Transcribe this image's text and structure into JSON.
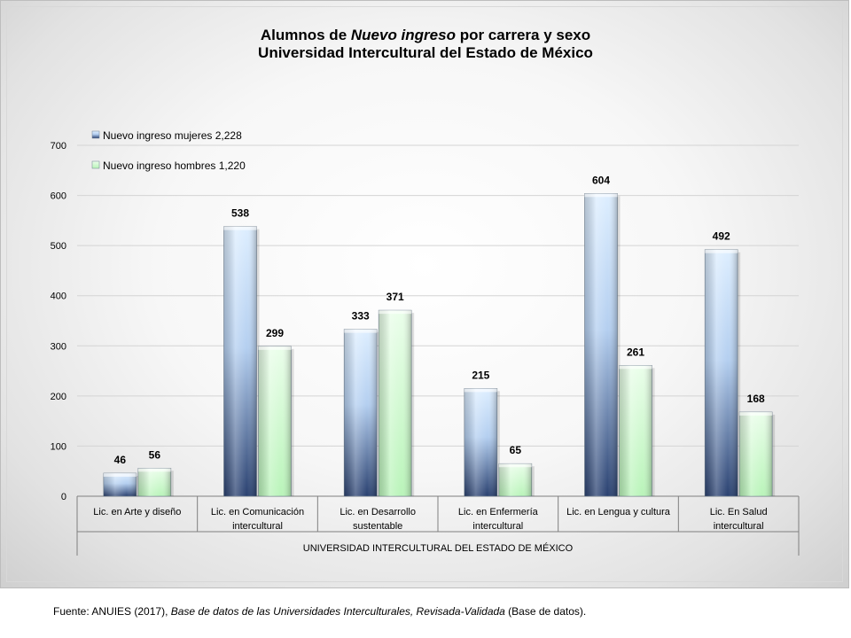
{
  "title": {
    "line1_pre": "Alumnos de ",
    "line1_italic": "Nuevo ingreso",
    "line1_post": " por carrera y sexo",
    "line2": "Universidad Intercultural del Estado de México"
  },
  "footer": {
    "source_pre": "Fuente: ANUIES (2017),  ",
    "source_italic": "Base de datos de las Universidades  Interculturales, Revisada-Validada",
    "source_post": "  (Base de datos)."
  },
  "colors": {
    "mujeres_top": "#ddeeff",
    "mujeres_mid": "#b4cff0",
    "mujeres_bottom": "#2a4170",
    "hombres_top": "#eafeea",
    "hombres_bottom": "#b9f4b9",
    "grid": "#d4d4d4",
    "axis": "#7f7f7f"
  },
  "chart_data": {
    "type": "bar",
    "title": "Alumnos de Nuevo ingreso por carrera y sexo Universidad Intercultural del Estado de México",
    "categories": [
      [
        "Lic. en Arte y diseño"
      ],
      [
        "Lic. en Comunicación",
        "intercultural"
      ],
      [
        "Lic. en Desarrollo",
        "sustentable"
      ],
      [
        "Lic. en Enfermería",
        "intercultural"
      ],
      [
        "Lic. en Lengua y cultura"
      ],
      [
        "Lic. En Salud",
        "intercultural"
      ]
    ],
    "group_label": "UNIVERSIDAD INTERCULTURAL DEL ESTADO DE MÉXICO",
    "series": [
      {
        "name": "Nuevo ingreso mujeres 2,228",
        "values": [
          46,
          538,
          333,
          215,
          604,
          492
        ]
      },
      {
        "name": "Nuevo ingreso hombres 1,220",
        "values": [
          56,
          299,
          371,
          65,
          261,
          168
        ]
      }
    ],
    "ylim": [
      0,
      700
    ],
    "yticks": [
      0,
      100,
      200,
      300,
      400,
      500,
      600,
      700
    ],
    "grid": true,
    "legend_position": "top-left",
    "data_labels": true
  }
}
